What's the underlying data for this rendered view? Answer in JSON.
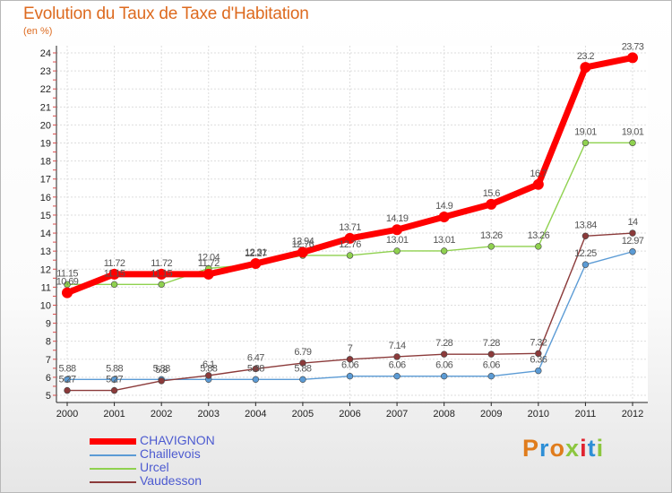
{
  "title": "Evolution du Taux de Taxe d'Habitation",
  "subtitle": "(en %)",
  "logo": {
    "text": "Proxiti",
    "colors": [
      "#e07c1c",
      "#2e8fd6",
      "#e07c1c",
      "#8cc63f",
      "#e0232f",
      "#2e8fd6",
      "#8cc63f"
    ]
  },
  "chart_data": {
    "type": "line",
    "x": [
      "2000",
      "2001",
      "2002",
      "2003",
      "2004",
      "2005",
      "2006",
      "2007",
      "2008",
      "2009",
      "2010",
      "2011",
      "2012"
    ],
    "ylim": [
      5,
      24
    ],
    "yticks": [
      5,
      6,
      7,
      8,
      9,
      10,
      11,
      12,
      13,
      14,
      15,
      16,
      17,
      18,
      19,
      20,
      21,
      22,
      23,
      24
    ],
    "grid": true,
    "legend_position": "bottom-left",
    "series": [
      {
        "name": "CHAVIGNON",
        "color": "#ff0000",
        "values": [
          10.69,
          11.72,
          11.72,
          11.72,
          12.31,
          12.94,
          13.71,
          14.19,
          14.9,
          15.6,
          16.7,
          23.2,
          23.73
        ],
        "labels": [
          "10.69",
          "11.72",
          "11.72",
          "11.72",
          "12.31",
          "12.94",
          "13.71",
          "14.19",
          "14.9",
          "15.6",
          "16.7",
          "23.2",
          "23.73"
        ]
      },
      {
        "name": "Chaillevois",
        "color": "#5b9bd5",
        "values": [
          5.88,
          5.88,
          5.88,
          5.88,
          5.88,
          5.88,
          6.06,
          6.06,
          6.06,
          6.06,
          6.36,
          12.25,
          12.97
        ],
        "labels": [
          "5.88",
          "5.88",
          "5.88",
          "5.88",
          "5.88",
          "5.88",
          "6.06",
          "6.06",
          "6.06",
          "6.06",
          "6.36",
          "12.25",
          "12.97"
        ]
      },
      {
        "name": "Urcel",
        "color": "#8fd14f",
        "values": [
          11.15,
          11.15,
          11.15,
          12.04,
          12.27,
          12.76,
          12.76,
          13.01,
          13.01,
          13.26,
          13.26,
          19.01,
          19.01
        ],
        "labels": [
          "11.15",
          "11.15",
          "11.15",
          "12.04",
          "12.27",
          "12.76",
          "12.76",
          "13.01",
          "13.01",
          "13.26",
          "13.26",
          "19.01",
          "19.01"
        ]
      },
      {
        "name": "Vaudesson",
        "color": "#8b3a3a",
        "values": [
          5.27,
          5.27,
          5.8,
          6.1,
          6.47,
          6.79,
          7.0,
          7.14,
          7.28,
          7.28,
          7.32,
          13.84,
          14.0
        ],
        "labels": [
          "5.27",
          "5.27",
          "5.8",
          "6.1",
          "6.47",
          "6.79",
          "7",
          "7.14",
          "7.28",
          "7.28",
          "7.32",
          "13.84",
          "14"
        ]
      }
    ]
  }
}
